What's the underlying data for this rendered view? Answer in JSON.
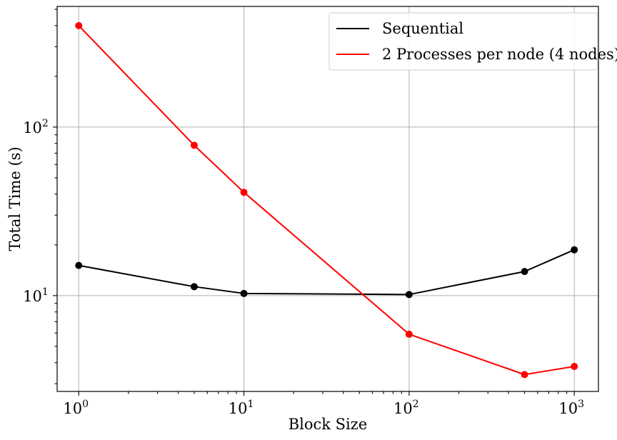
{
  "chart_data": {
    "type": "line",
    "xlabel": "Block Size",
    "ylabel": "Total Time (s)",
    "xscale": "log",
    "yscale": "log",
    "xlim": [
      0.74,
      1400
    ],
    "ylim": [
      2.7,
      520
    ],
    "grid": true,
    "legend_position": "top-right",
    "x_ticks": [
      {
        "value": 1,
        "base": "10",
        "exp": "0"
      },
      {
        "value": 10,
        "base": "10",
        "exp": "1"
      },
      {
        "value": 100,
        "base": "10",
        "exp": "2"
      },
      {
        "value": 1000,
        "base": "10",
        "exp": "3"
      }
    ],
    "y_ticks": [
      {
        "value": 10,
        "base": "10",
        "exp": "1"
      },
      {
        "value": 100,
        "base": "10",
        "exp": "2"
      }
    ],
    "series": [
      {
        "name": "Sequential",
        "color": "#000000",
        "x": [
          1,
          5,
          10,
          100,
          500,
          1000
        ],
        "y": [
          15.1,
          11.3,
          10.3,
          10.15,
          13.9,
          18.7
        ]
      },
      {
        "name": "2 Processes per node (4 nodes)",
        "color": "#ff0000",
        "x": [
          1,
          5,
          10,
          100,
          500,
          1000
        ],
        "y": [
          400,
          78,
          41,
          5.9,
          3.4,
          3.8
        ]
      }
    ]
  }
}
